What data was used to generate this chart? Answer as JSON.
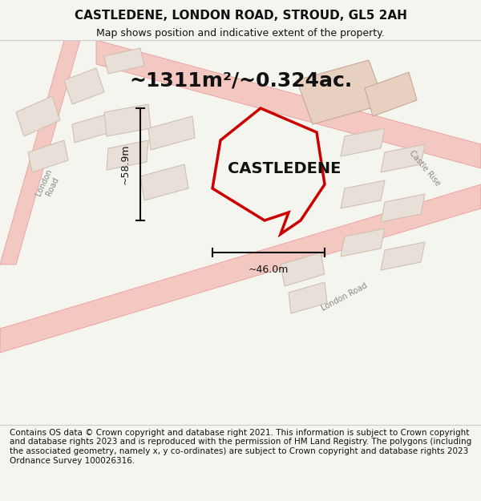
{
  "title": "CASTLEDENE, LONDON ROAD, STROUD, GL5 2AH",
  "subtitle": "Map shows position and indicative extent of the property.",
  "area_text": "~1311m²/~0.324ac.",
  "property_label": "CASTLEDENE",
  "dim_width": "~46.0m",
  "dim_height": "~58.9m",
  "copyright_text": "Contains OS data © Crown copyright and database right 2021. This information is subject to Crown copyright and database rights 2023 and is reproduced with the permission of HM Land Registry. The polygons (including the associated geometry, namely x, y co-ordinates) are subject to Crown copyright and database rights 2023 Ordnance Survey 100026316.",
  "bg_color": "#f5f5f0",
  "map_bg": "#f9f8f5",
  "road_color": "#f2c8c0",
  "road_stroke": "#e89090",
  "building_fill": "#e8e0d8",
  "building_stroke": "#d0c0b0",
  "highlighted_fill": "#e8d0c0",
  "highlighted_stroke": "#c8a898",
  "property_stroke": "#cc0000",
  "property_fill": "none",
  "dim_color": "#111111",
  "text_color": "#111111",
  "road_label_color": "#888888",
  "title_fontsize": 11,
  "subtitle_fontsize": 9,
  "area_fontsize": 18,
  "property_label_fontsize": 14,
  "copyright_fontsize": 7.5,
  "figsize": [
    6.0,
    6.25
  ],
  "dpi": 100
}
